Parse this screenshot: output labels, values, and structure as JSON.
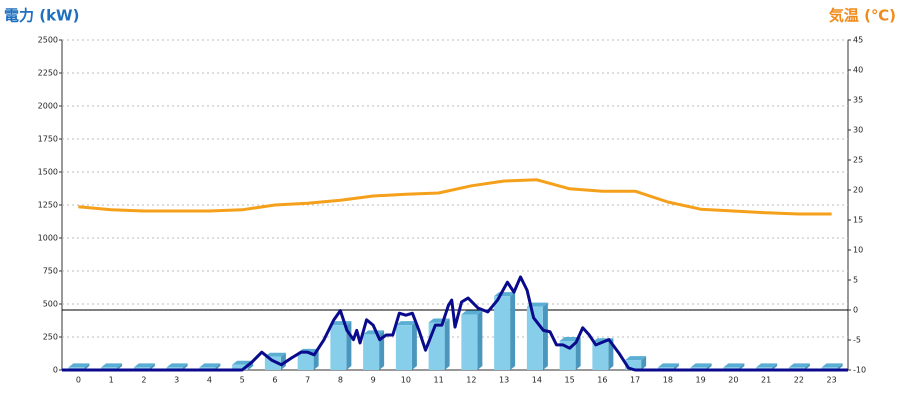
{
  "chart_data": {
    "type": "bar",
    "title": "電力 (kW)",
    "y2_title": "気温 (℃)",
    "categories": [
      "0",
      "1",
      "2",
      "3",
      "4",
      "5",
      "6",
      "7",
      "8",
      "9",
      "10",
      "11",
      "12",
      "13",
      "14",
      "15",
      "16",
      "17",
      "18",
      "19",
      "20",
      "21",
      "22",
      "23"
    ],
    "xlim": [
      -0.5,
      23.5
    ],
    "ylim": [
      0,
      2500
    ],
    "yticks": [
      0,
      250,
      500,
      750,
      1000,
      1250,
      1500,
      1750,
      2000,
      2250,
      2500
    ],
    "y2lim": [
      -10,
      45
    ],
    "y2ticks": [
      -10,
      -5,
      0,
      5,
      10,
      15,
      20,
      25,
      30,
      35,
      40,
      45
    ],
    "grid": true,
    "series": [
      {
        "type": "bar",
        "color": "#87ceeb",
        "values": [
          20,
          20,
          20,
          20,
          20,
          40,
          100,
          130,
          340,
          270,
          340,
          360,
          420,
          560,
          480,
          220,
          210,
          75,
          20,
          20,
          20,
          20,
          20,
          20
        ]
      },
      {
        "type": "line",
        "color": "#0a0a8c",
        "x": [
          -0.5,
          5.0,
          5.3,
          5.6,
          5.9,
          6.2,
          6.5,
          6.8,
          7.0,
          7.2,
          7.5,
          7.8,
          8.0,
          8.2,
          8.4,
          8.5,
          8.6,
          8.8,
          9.0,
          9.2,
          9.4,
          9.6,
          9.8,
          10.0,
          10.2,
          10.4,
          10.6,
          10.9,
          11.1,
          11.3,
          11.4,
          11.5,
          11.7,
          11.9,
          12.2,
          12.5,
          12.8,
          13.1,
          13.3,
          13.5,
          13.7,
          13.9,
          14.2,
          14.4,
          14.6,
          14.8,
          15.0,
          15.2,
          15.4,
          15.6,
          15.8,
          16.0,
          16.2,
          16.5,
          16.8,
          17.0,
          23.5
        ],
        "values": [
          0,
          0,
          60,
          135,
          75,
          40,
          90,
          135,
          135,
          115,
          230,
          380,
          450,
          300,
          230,
          300,
          205,
          380,
          340,
          230,
          265,
          265,
          430,
          415,
          430,
          300,
          150,
          340,
          340,
          490,
          530,
          325,
          515,
          545,
          470,
          440,
          530,
          665,
          590,
          705,
          605,
          395,
          300,
          290,
          190,
          190,
          165,
          210,
          320,
          265,
          190,
          210,
          230,
          130,
          15,
          0,
          0
        ]
      },
      {
        "type": "line",
        "axis": "y2",
        "color": "#f5a01a",
        "values": [
          17.2,
          16.7,
          16.5,
          16.5,
          16.5,
          16.7,
          17.5,
          17.8,
          18.3,
          19,
          19.3,
          19.5,
          20.7,
          21.5,
          21.7,
          20.2,
          19.8,
          19.8,
          18,
          16.8,
          16.5,
          16.2,
          16,
          16
        ]
      }
    ]
  }
}
